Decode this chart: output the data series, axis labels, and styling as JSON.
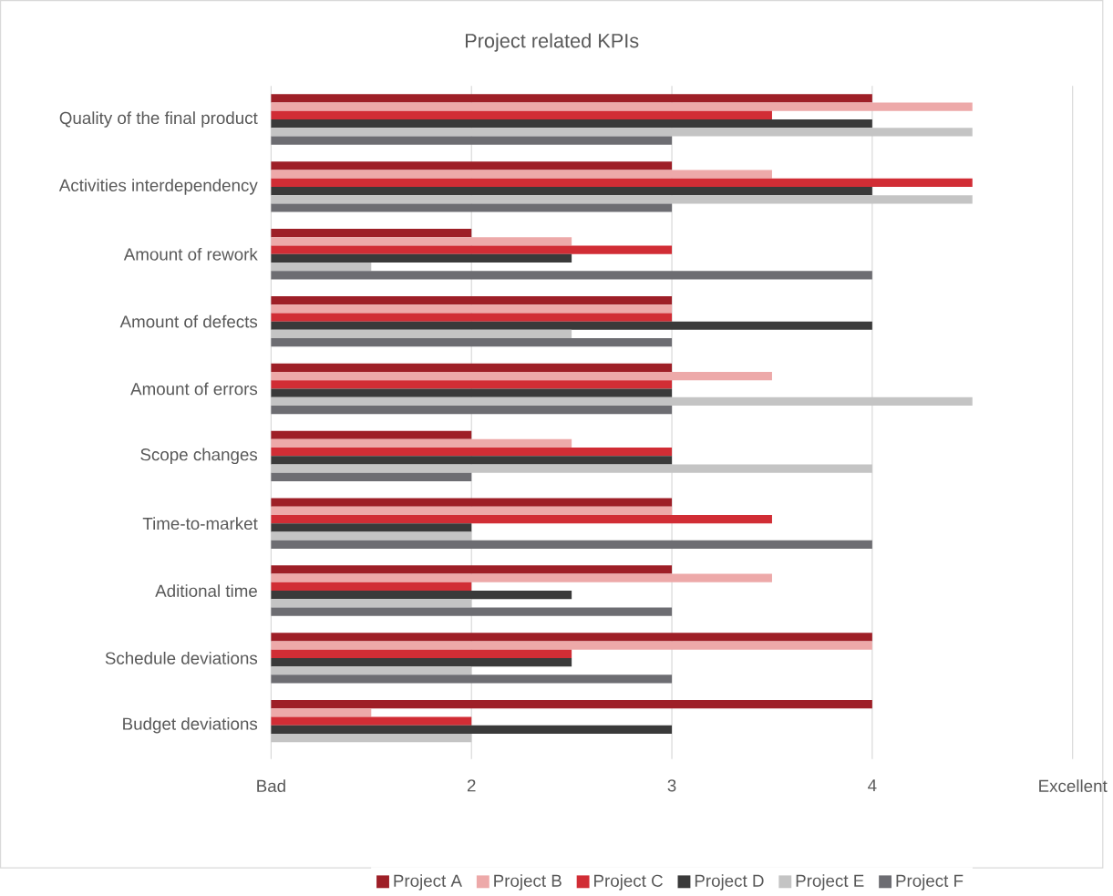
{
  "chart_data": {
    "type": "bar",
    "orientation": "horizontal",
    "title": "Project related KPIs",
    "categories": [
      "Quality of the final product",
      "Activities interdependency",
      "Amount of rework",
      "Amount of defects",
      "Amount of errors",
      "Scope changes",
      "Time-to-market",
      "Aditional time",
      "Schedule deviations",
      "Budget deviations"
    ],
    "series": [
      {
        "name": "Project A",
        "color": "#9e1f27",
        "values": [
          4,
          3,
          2,
          3,
          3,
          2,
          3,
          3,
          4,
          4
        ]
      },
      {
        "name": "Project B",
        "color": "#eda9a9",
        "values": [
          4.5,
          3.5,
          2.5,
          3,
          3.5,
          2.5,
          3,
          3.5,
          4,
          1.5
        ]
      },
      {
        "name": "Project C",
        "color": "#d12d35",
        "values": [
          3.5,
          4.5,
          3,
          3,
          3,
          3,
          3.5,
          2,
          2.5,
          2
        ]
      },
      {
        "name": "Project D",
        "color": "#3a3a3a",
        "values": [
          4,
          4,
          2.5,
          4,
          3,
          3,
          2,
          2.5,
          2.5,
          3
        ]
      },
      {
        "name": "Project E",
        "color": "#c4c4c4",
        "values": [
          4.5,
          4.5,
          1.5,
          2.5,
          4.5,
          4,
          2,
          2,
          2,
          2
        ]
      },
      {
        "name": "Project F",
        "color": "#6d6d72",
        "values": [
          3,
          3,
          4,
          3,
          3,
          2,
          4,
          3,
          3,
          null
        ]
      }
    ],
    "xlim": [
      1,
      5
    ],
    "xticks": [
      {
        "value": 1,
        "label": "Bad"
      },
      2,
      3,
      4,
      {
        "value": 5,
        "label": "Excellent"
      }
    ],
    "grid": "x",
    "legend": "bottom"
  }
}
